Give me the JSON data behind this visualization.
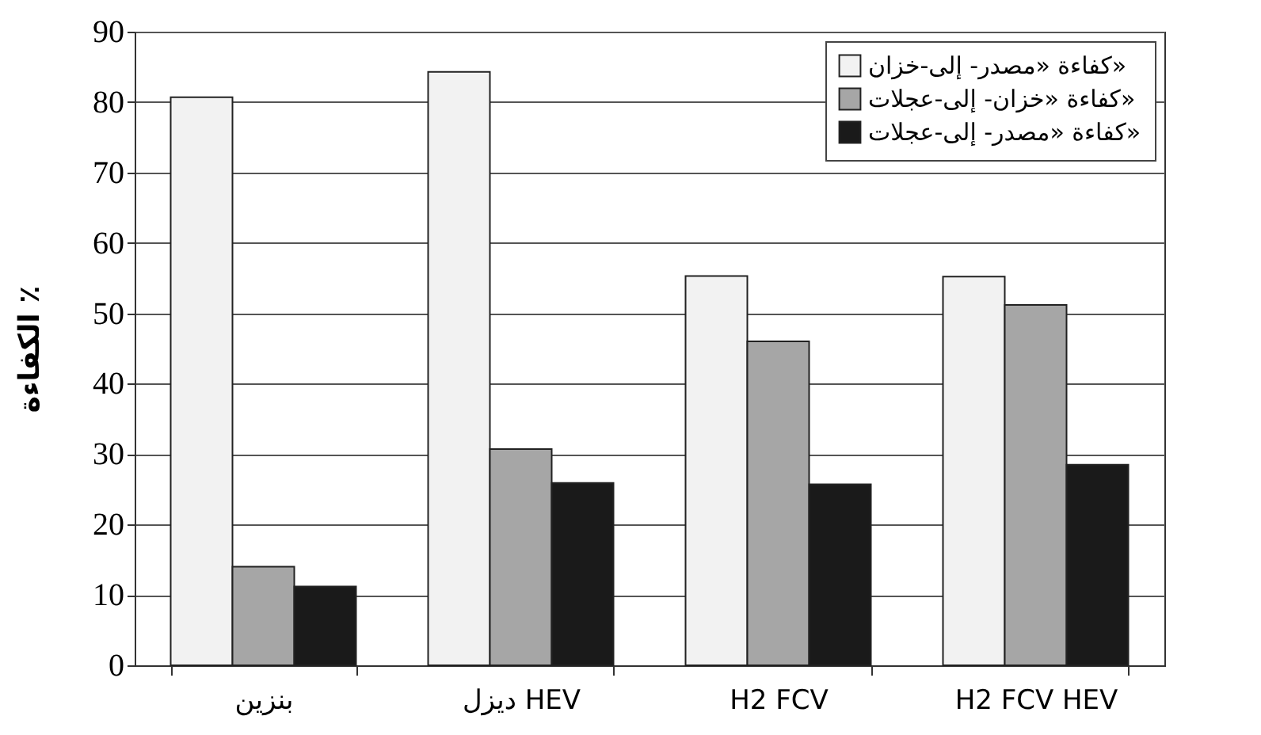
{
  "chart_data": {
    "type": "bar",
    "ylabel": "الكفاءة ٪",
    "categories": [
      "بنزين",
      "ديزل HEV",
      "H2 FCV",
      "H2 FCV HEV"
    ],
    "series": [
      {
        "name": "كفاءة «مصدر- إلى-خزان»",
        "color": "#f2f2f2",
        "values": [
          80.7,
          84.3,
          55.3,
          55.2
        ]
      },
      {
        "name": "كفاءة «خزان- إلى-عجلات»",
        "color": "#a6a6a6",
        "values": [
          14,
          30.7,
          46,
          51.2
        ]
      },
      {
        "name": "كفاءة «مصدر- إلى-عجلات»",
        "color": "#1a1a1a",
        "values": [
          11.2,
          25.9,
          25.7,
          28.5
        ]
      }
    ],
    "ylim": [
      0,
      90
    ],
    "yticks": [
      0,
      10,
      20,
      30,
      40,
      50,
      60,
      70,
      80,
      90
    ],
    "grid": "y",
    "legend": "top right"
  }
}
